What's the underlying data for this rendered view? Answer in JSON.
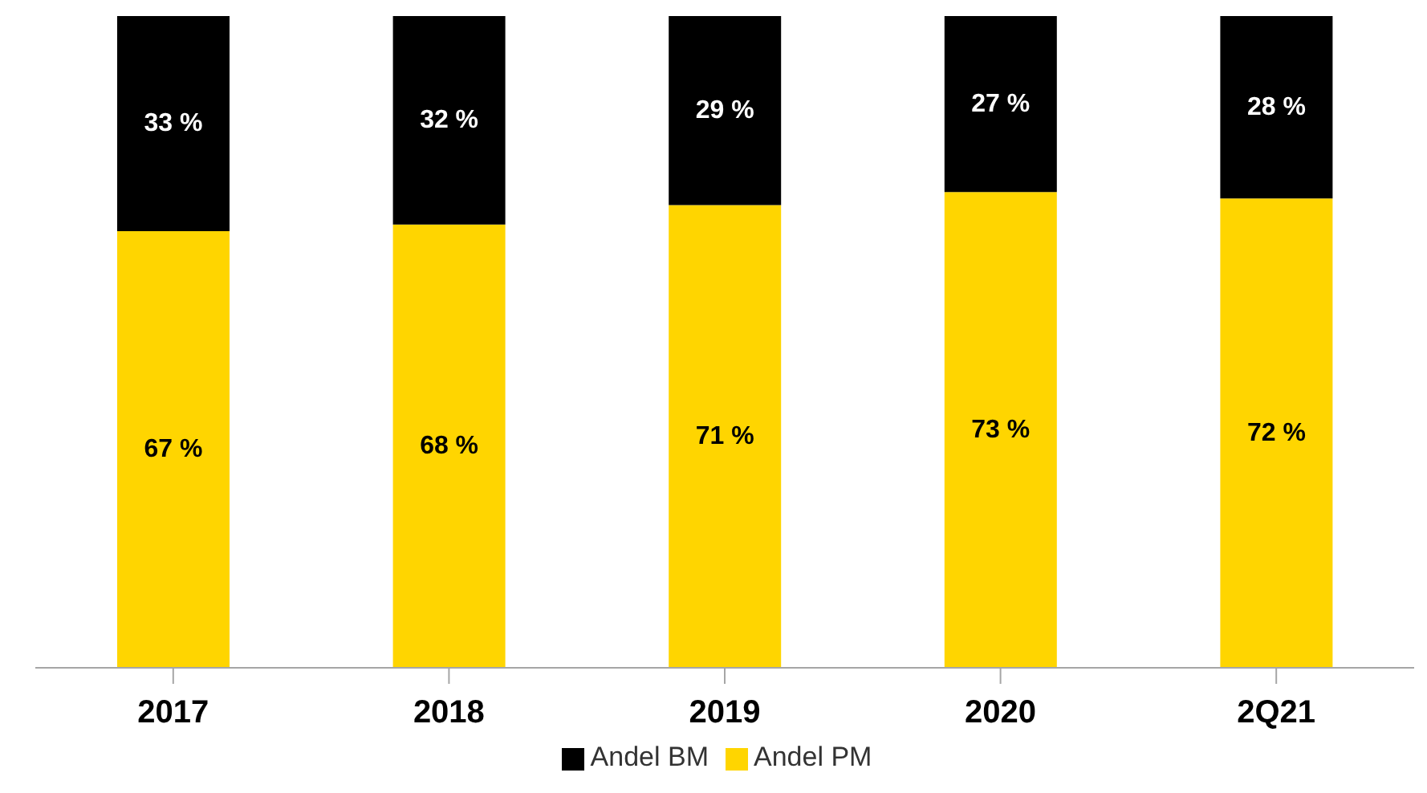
{
  "chart_data": {
    "type": "bar",
    "stacked": true,
    "categories": [
      "2017",
      "2018",
      "2019",
      "2020",
      "2Q21"
    ],
    "series": [
      {
        "name": "Andel PM",
        "color": "#ffd500",
        "values": [
          67,
          68,
          71,
          73,
          72
        ],
        "value_labels": [
          "67 %",
          "68 %",
          "71 %",
          "73 %",
          "72 %"
        ]
      },
      {
        "name": "Andel BM",
        "color": "#000000",
        "values": [
          33,
          32,
          29,
          27,
          28
        ],
        "value_labels": [
          "33 %",
          "32 %",
          "29 %",
          "27 %",
          "28 %"
        ]
      }
    ],
    "legend": "bottom"
  }
}
